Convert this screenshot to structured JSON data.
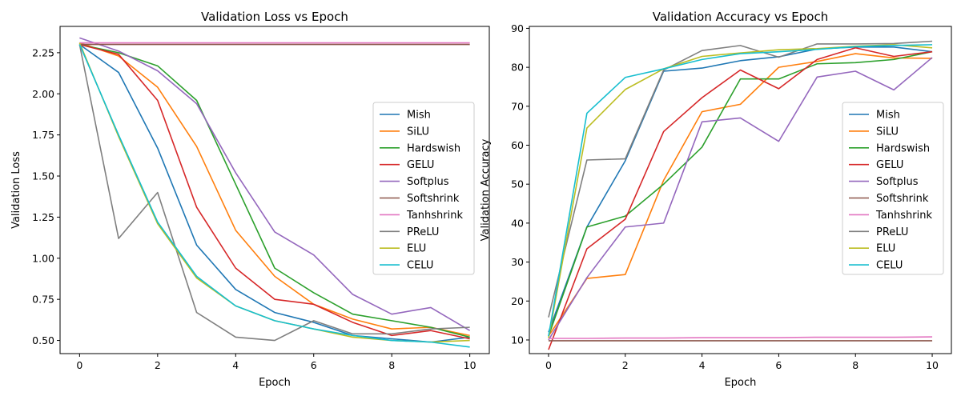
{
  "colors": [
    "#1f77b4",
    "#ff7f0e",
    "#2ca02c",
    "#d62728",
    "#9467bd",
    "#8c564b",
    "#e377c2",
    "#7f7f7f",
    "#bcbd22",
    "#17becf"
  ],
  "chart_data": [
    {
      "type": "line",
      "title": "Validation Loss vs Epoch",
      "xlabel": "Epoch",
      "ylabel": "Validation Loss",
      "xlim": [
        -0.5,
        10.5
      ],
      "ylim": [
        0.42,
        2.41
      ],
      "xticks": [
        0,
        2,
        4,
        6,
        8,
        10
      ],
      "yticks": [
        0.5,
        0.75,
        1.0,
        1.25,
        1.5,
        1.75,
        2.0,
        2.25
      ],
      "ytick_labels": [
        "0.50",
        "0.75",
        "1.00",
        "1.25",
        "1.50",
        "1.75",
        "2.00",
        "2.25"
      ],
      "legend_position": "center-right",
      "x": [
        0,
        1,
        2,
        3,
        4,
        5,
        6,
        7,
        8,
        9,
        10
      ],
      "series": [
        {
          "name": "Mish",
          "values": [
            2.3,
            2.13,
            1.67,
            1.08,
            0.81,
            0.67,
            0.61,
            0.53,
            0.51,
            0.49,
            0.52
          ]
        },
        {
          "name": "SiLU",
          "values": [
            2.31,
            2.23,
            2.04,
            1.68,
            1.17,
            0.89,
            0.72,
            0.63,
            0.57,
            0.58,
            0.53
          ]
        },
        {
          "name": "Hardswish",
          "values": [
            2.3,
            2.25,
            2.17,
            1.96,
            1.45,
            0.94,
            0.79,
            0.66,
            0.62,
            0.58,
            0.52
          ]
        },
        {
          "name": "GELU",
          "values": [
            2.3,
            2.24,
            1.96,
            1.31,
            0.94,
            0.75,
            0.72,
            0.61,
            0.53,
            0.56,
            0.51
          ]
        },
        {
          "name": "Softplus",
          "values": [
            2.34,
            2.26,
            2.14,
            1.94,
            1.52,
            1.16,
            1.02,
            0.78,
            0.66,
            0.7,
            0.56
          ]
        },
        {
          "name": "Softshrink",
          "values": [
            2.3,
            2.3,
            2.3,
            2.3,
            2.3,
            2.3,
            2.3,
            2.3,
            2.3,
            2.3,
            2.3
          ]
        },
        {
          "name": "Tanhshrink",
          "values": [
            2.31,
            2.31,
            2.31,
            2.31,
            2.31,
            2.31,
            2.31,
            2.31,
            2.31,
            2.31,
            2.31
          ]
        },
        {
          "name": "PReLU",
          "values": [
            2.3,
            1.12,
            1.4,
            0.67,
            0.52,
            0.5,
            0.62,
            0.54,
            0.54,
            0.57,
            0.58
          ]
        },
        {
          "name": "ELU",
          "values": [
            2.31,
            1.74,
            1.21,
            0.88,
            0.71,
            0.62,
            0.57,
            0.52,
            0.5,
            0.49,
            0.5
          ]
        },
        {
          "name": "CELU",
          "values": [
            2.3,
            1.75,
            1.22,
            0.89,
            0.71,
            0.62,
            0.57,
            0.53,
            0.5,
            0.49,
            0.46
          ]
        }
      ]
    },
    {
      "type": "line",
      "title": "Validation Accuracy vs Epoch",
      "xlabel": "Epoch",
      "ylabel": "Validation Accuracy",
      "xlim": [
        -0.5,
        10.5
      ],
      "ylim": [
        6.5,
        90.5
      ],
      "xticks": [
        0,
        2,
        4,
        6,
        8,
        10
      ],
      "yticks": [
        10,
        20,
        30,
        40,
        50,
        60,
        70,
        80,
        90
      ],
      "ytick_labels": [
        "10",
        "20",
        "30",
        "40",
        "50",
        "60",
        "70",
        "80",
        "90"
      ],
      "legend_position": "center-right",
      "x": [
        0,
        1,
        2,
        3,
        4,
        5,
        6,
        7,
        8,
        9,
        10
      ],
      "series": [
        {
          "name": "Mish",
          "values": [
            12.0,
            39.0,
            56.0,
            79.0,
            79.8,
            81.7,
            82.7,
            84.7,
            85.2,
            85.2,
            84.0
          ]
        },
        {
          "name": "SiLU",
          "values": [
            11.0,
            25.8,
            26.8,
            51.0,
            68.6,
            70.5,
            80.0,
            81.5,
            83.5,
            82.4,
            82.3
          ]
        },
        {
          "name": "Hardswish",
          "values": [
            11.0,
            39.0,
            41.8,
            50.0,
            59.5,
            77.0,
            77.0,
            80.9,
            81.2,
            82.0,
            84.0
          ]
        },
        {
          "name": "GELU",
          "values": [
            7.5,
            33.4,
            41.0,
            63.5,
            72.2,
            79.3,
            74.5,
            82.0,
            85.0,
            82.8,
            84.0
          ]
        },
        {
          "name": "Softplus",
          "values": [
            10.0,
            26.0,
            39.0,
            40.0,
            66.0,
            67.0,
            61.0,
            77.5,
            79.0,
            74.2,
            82.5
          ]
        },
        {
          "name": "Softshrink",
          "values": [
            9.8,
            9.8,
            9.8,
            9.8,
            9.8,
            9.8,
            9.8,
            9.8,
            9.8,
            9.8,
            9.8
          ]
        },
        {
          "name": "Tanhshrink",
          "values": [
            10.4,
            10.4,
            10.5,
            10.5,
            10.6,
            10.6,
            10.6,
            10.7,
            10.7,
            10.7,
            10.8
          ]
        },
        {
          "name": "PReLU",
          "values": [
            15.8,
            56.2,
            56.5,
            79.3,
            84.3,
            85.6,
            82.6,
            86.0,
            86.0,
            86.1,
            86.7
          ]
        },
        {
          "name": "ELU",
          "values": [
            10.5,
            64.4,
            74.3,
            79.6,
            82.8,
            83.7,
            84.5,
            84.8,
            85.4,
            85.8,
            85.0
          ]
        },
        {
          "name": "CELU",
          "values": [
            11.0,
            68.2,
            77.4,
            79.6,
            82.0,
            83.5,
            84.0,
            84.6,
            85.3,
            85.6,
            85.8
          ]
        }
      ]
    }
  ]
}
